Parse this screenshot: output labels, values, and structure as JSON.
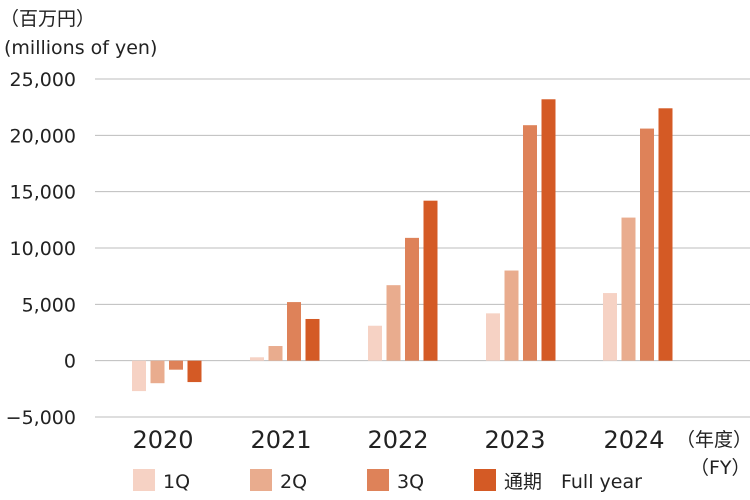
{
  "chart_data": {
    "type": "bar",
    "unit_label_ja": "（百万円）",
    "unit_label_en": "(millions of yen)",
    "categories": [
      "2020",
      "2021",
      "2022",
      "2023",
      "2024"
    ],
    "x_unit_ja": "（年度）",
    "x_unit_en": "（FY）",
    "y_ticks": [
      "25,000",
      "20,000",
      "15,000",
      "10,000",
      "5,000",
      "0",
      "−5,000"
    ],
    "ylim": [
      -5000,
      25000
    ],
    "grid": true,
    "legend_position": "bottom",
    "series": [
      {
        "name": "1Q",
        "color": "#f6d2c4",
        "values": [
          -2700,
          300,
          3100,
          4200,
          6000
        ]
      },
      {
        "name": "2Q",
        "color": "#e9ac8e",
        "values": [
          -2000,
          1300,
          6700,
          8000,
          12700
        ]
      },
      {
        "name": "3Q",
        "color": "#de8259",
        "values": [
          -800,
          5200,
          10900,
          20900,
          20600
        ]
      },
      {
        "name": "通期　Full year",
        "color": "#d45a25",
        "values": [
          -1900,
          3700,
          14200,
          23200,
          22400
        ]
      }
    ]
  }
}
